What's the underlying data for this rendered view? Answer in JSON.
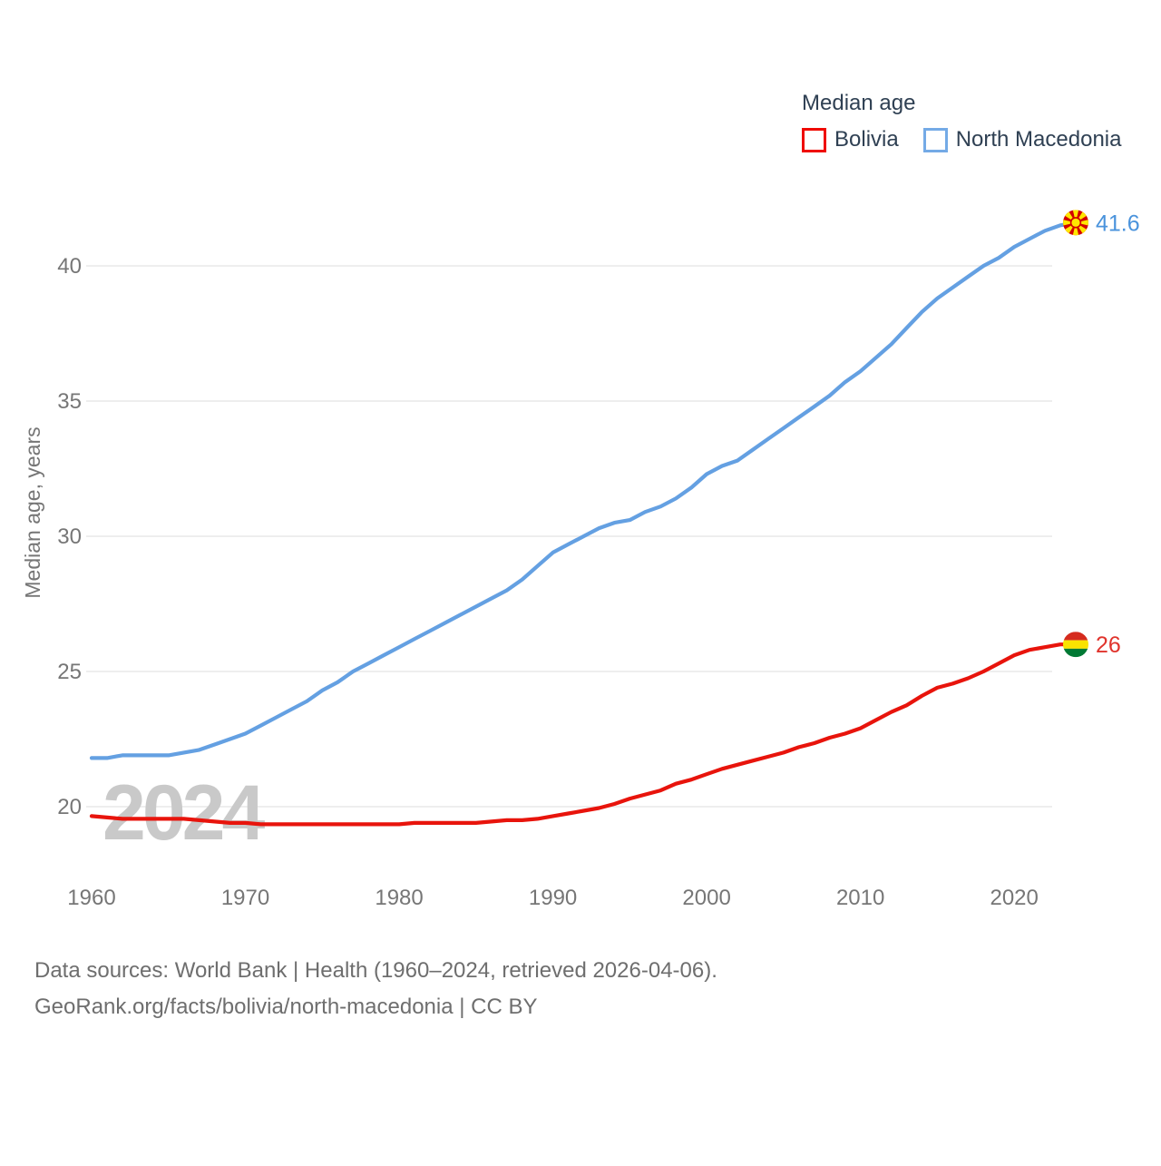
{
  "legend": {
    "title": "Median age",
    "items": [
      {
        "label": "Bolivia",
        "color": "#ef0a00"
      },
      {
        "label": "North Macedonia",
        "color": "#74aae6"
      }
    ]
  },
  "watermark": "2024",
  "footer": {
    "line1": "Data sources: World Bank | Health (1960–2024, retrieved 2026-04-06).",
    "line2": "GeoRank.org/facts/bolivia/north-macedonia | CC BY"
  },
  "chart_data": {
    "type": "line",
    "title": "Median age",
    "ylabel": "Median age, years",
    "x_start": 1960,
    "x_end": 2024,
    "xticks": [
      1960,
      1970,
      1980,
      1990,
      2000,
      2010,
      2020
    ],
    "yticks": [
      20,
      25,
      30,
      35,
      40
    ],
    "ylim": [
      18.8,
      42.6
    ],
    "grid": "horizontal-only",
    "legend_position": "top-right",
    "series": [
      {
        "name": "Bolivia",
        "color": "#e8140c",
        "value_color": "#e0332c",
        "marker": "bolivia-flag",
        "end_label": "26",
        "end_value": 26,
        "values": [
          19.65,
          19.6,
          19.55,
          19.55,
          19.55,
          19.55,
          19.55,
          19.5,
          19.45,
          19.4,
          19.4,
          19.35,
          19.35,
          19.35,
          19.35,
          19.35,
          19.35,
          19.35,
          19.35,
          19.35,
          19.35,
          19.4,
          19.4,
          19.4,
          19.4,
          19.4,
          19.45,
          19.5,
          19.5,
          19.55,
          19.65,
          19.75,
          19.85,
          19.95,
          20.1,
          20.3,
          20.45,
          20.6,
          20.85,
          21.0,
          21.2,
          21.4,
          21.55,
          21.7,
          21.85,
          22.0,
          22.2,
          22.35,
          22.55,
          22.7,
          22.9,
          23.2,
          23.5,
          23.75,
          24.1,
          24.4,
          24.55,
          24.75,
          25.0,
          25.3,
          25.6,
          25.8,
          25.9,
          26.0,
          26.0
        ]
      },
      {
        "name": "North Macedonia",
        "color": "#64a0e2",
        "value_color": "#4a93dc",
        "marker": "north-macedonia-flag",
        "end_label": "41.6",
        "end_value": 41.6,
        "values": [
          21.8,
          21.8,
          21.9,
          21.9,
          21.9,
          21.9,
          22.0,
          22.1,
          22.3,
          22.5,
          22.7,
          23.0,
          23.3,
          23.6,
          23.9,
          24.3,
          24.6,
          25.0,
          25.3,
          25.6,
          25.9,
          26.2,
          26.5,
          26.8,
          27.1,
          27.4,
          27.7,
          28.0,
          28.4,
          28.9,
          29.4,
          29.7,
          30.0,
          30.3,
          30.5,
          30.6,
          30.9,
          31.1,
          31.4,
          31.8,
          32.3,
          32.6,
          32.8,
          33.2,
          33.6,
          34.0,
          34.4,
          34.8,
          35.2,
          35.7,
          36.1,
          36.6,
          37.1,
          37.7,
          38.3,
          38.8,
          39.2,
          39.6,
          40.0,
          40.3,
          40.7,
          41.0,
          41.3,
          41.5,
          41.6
        ]
      }
    ],
    "flag_colors": {
      "bolivia": {
        "red": "#d52b1e",
        "yellow": "#f9e300",
        "green": "#007934"
      },
      "north_macedonia": {
        "red": "#d20000",
        "yellow": "#ffe600"
      }
    },
    "style": {
      "gridline_color": "#e9e9e9",
      "axis_text_color": "#767676",
      "watermark_color": "#c9c9c9"
    }
  }
}
